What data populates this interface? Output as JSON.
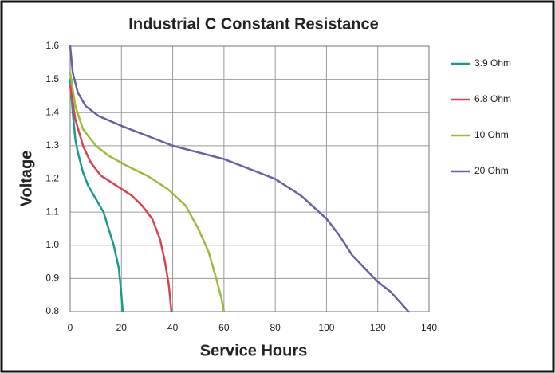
{
  "chart_data": {
    "type": "line",
    "title": "Industrial C Constant Resistance",
    "xlabel": "Service Hours",
    "ylabel": "Voltage",
    "xlim": [
      0,
      140
    ],
    "ylim": [
      0.8,
      1.6
    ],
    "xticks": [
      0,
      20,
      40,
      60,
      80,
      100,
      120,
      140
    ],
    "yticks": [
      0.8,
      0.9,
      {
        "value": 1,
        "label": "1.0"
      },
      1.1,
      1.2,
      1.3,
      1.4,
      1.5,
      1.6
    ],
    "grid": true,
    "legend": "right",
    "series": [
      {
        "name": "3.9 Ohm",
        "color": "#1a9a8a",
        "x": [
          0,
          1,
          2,
          3,
          5,
          7,
          10,
          13,
          15,
          17,
          19,
          20,
          20.5
        ],
        "values": [
          1.5,
          1.4,
          1.32,
          1.28,
          1.22,
          1.18,
          1.14,
          1.1,
          1.05,
          1.0,
          0.93,
          0.85,
          0.8
        ]
      },
      {
        "name": "6.8 Ohm",
        "color": "#d9434f",
        "x": [
          0,
          2,
          5,
          8,
          12,
          18,
          24,
          28,
          32,
          35,
          37,
          38.5,
          39.5
        ],
        "values": [
          1.48,
          1.38,
          1.3,
          1.25,
          1.21,
          1.18,
          1.15,
          1.12,
          1.08,
          1.02,
          0.95,
          0.88,
          0.8
        ]
      },
      {
        "name": "10 Ohm",
        "color": "#9bbb3c",
        "x": [
          0,
          2,
          5,
          10,
          15,
          22,
          30,
          38,
          45,
          50,
          54,
          57,
          59,
          60
        ],
        "values": [
          1.52,
          1.42,
          1.35,
          1.3,
          1.27,
          1.24,
          1.21,
          1.17,
          1.12,
          1.05,
          0.98,
          0.9,
          0.84,
          0.8
        ]
      },
      {
        "name": "20 Ohm",
        "color": "#6b5ea8",
        "x": [
          0,
          1,
          3,
          6,
          11,
          20,
          30,
          40,
          50,
          60,
          70,
          80,
          90,
          100,
          105,
          110,
          115,
          120,
          125,
          132
        ],
        "values": [
          1.6,
          1.52,
          1.46,
          1.42,
          1.39,
          1.36,
          1.33,
          1.3,
          1.28,
          1.26,
          1.23,
          1.2,
          1.15,
          1.08,
          1.03,
          0.97,
          0.93,
          0.89,
          0.86,
          0.8
        ]
      }
    ]
  }
}
